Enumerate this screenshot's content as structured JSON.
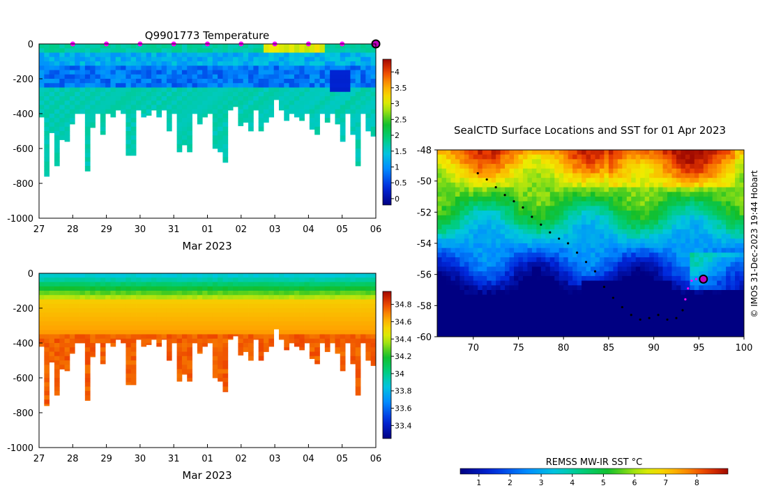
{
  "chart_data": [
    {
      "type": "heatmap",
      "name": "temperature-section",
      "title": "Q9901773  Temperature",
      "xlabel": "Mar 2023",
      "x_ticks": [
        "27",
        "28",
        "29",
        "30",
        "31",
        "01",
        "02",
        "03",
        "04",
        "05",
        "06"
      ],
      "x_range_days": [
        0,
        10
      ],
      "y_ticks": [
        "0",
        "-200",
        "-400",
        "-600",
        "-800",
        "-1000"
      ],
      "ylim": [
        -1000,
        0
      ],
      "colorbar": {
        "ticks": [
          "0",
          "0.5",
          "1",
          "1.5",
          "2",
          "2.5",
          "3",
          "3.5",
          "4"
        ],
        "range": [
          -0.2,
          4.4
        ]
      },
      "profile_markers_day": [
        1,
        2,
        3,
        4,
        5,
        6,
        7,
        8,
        9
      ],
      "latest_profile_day": 10,
      "profile_max_depth_m": [
        420,
        760,
        510,
        700,
        550,
        560,
        460,
        400,
        400,
        730,
        480,
        400,
        520,
        400,
        420,
        380,
        400,
        640,
        640,
        380,
        420,
        410,
        380,
        420,
        380,
        500,
        400,
        620,
        580,
        620,
        400,
        460,
        420,
        400,
        600,
        620,
        680,
        380,
        360,
        470,
        450,
        500,
        380,
        500,
        450,
        420,
        320,
        380,
        440,
        400,
        420,
        440,
        400,
        490,
        520,
        400,
        450,
        400,
        460,
        560,
        400,
        520,
        700,
        400,
        500,
        530
      ]
    },
    {
      "type": "heatmap",
      "name": "salinity-section",
      "xlabel": "Mar 2023",
      "x_ticks": [
        "27",
        "28",
        "29",
        "30",
        "31",
        "01",
        "02",
        "03",
        "04",
        "05",
        "06"
      ],
      "y_ticks": [
        "0",
        "-200",
        "-400",
        "-600",
        "-800",
        "-1000"
      ],
      "ylim": [
        -1000,
        0
      ],
      "colorbar": {
        "ticks": [
          "33.4",
          "33.6",
          "33.8",
          "34",
          "34.2",
          "34.4",
          "34.6",
          "34.8"
        ],
        "range": [
          33.25,
          34.95
        ]
      }
    },
    {
      "type": "heatmap",
      "name": "sst-map",
      "title": "SealCTD Surface Locations and SST for 01 Apr 2023",
      "x_ticks": [
        "70",
        "75",
        "80",
        "85",
        "90",
        "95",
        "100"
      ],
      "xlim": [
        66,
        100
      ],
      "y_ticks": [
        "-48",
        "-50",
        "-52",
        "-54",
        "-56",
        "-58",
        "-60"
      ],
      "ylim": [
        -60,
        -48
      ],
      "colorbar_label": "REMSS MW-IR SST °C",
      "colorbar_ticks": [
        "1",
        "2",
        "3",
        "4",
        "5",
        "6",
        "7",
        "8"
      ],
      "colorbar_range": [
        0.4,
        9
      ],
      "track": [
        [
          70.5,
          -49.5
        ],
        [
          71.5,
          -49.9
        ],
        [
          72.5,
          -50.4
        ],
        [
          73.5,
          -50.9
        ],
        [
          74.5,
          -51.3
        ],
        [
          75.5,
          -51.7
        ],
        [
          76.5,
          -52.3
        ],
        [
          77.5,
          -52.8
        ],
        [
          78.5,
          -53.3
        ],
        [
          79.5,
          -53.7
        ],
        [
          80.5,
          -54
        ],
        [
          81.5,
          -54.6
        ],
        [
          82.5,
          -55.2
        ],
        [
          83.5,
          -55.8
        ],
        [
          84.5,
          -56.8
        ],
        [
          85.5,
          -57.5
        ],
        [
          86.5,
          -58.1
        ],
        [
          87.5,
          -58.6
        ],
        [
          88.5,
          -58.9
        ],
        [
          89.5,
          -58.8
        ],
        [
          90.5,
          -58.6
        ],
        [
          91.5,
          -58.9
        ],
        [
          92.5,
          -58.8
        ],
        [
          93.2,
          -58.3
        ],
        [
          93.5,
          -57.6
        ],
        [
          93.8,
          -56.9
        ],
        [
          94.2,
          -56.4
        ],
        [
          94.7,
          -56.3
        ]
      ],
      "recent_track_start_index": 24,
      "latest_position": [
        95.5,
        -56.3
      ]
    }
  ],
  "credit": "© IMOS 31-Dec-2023 19:44 Hobart"
}
